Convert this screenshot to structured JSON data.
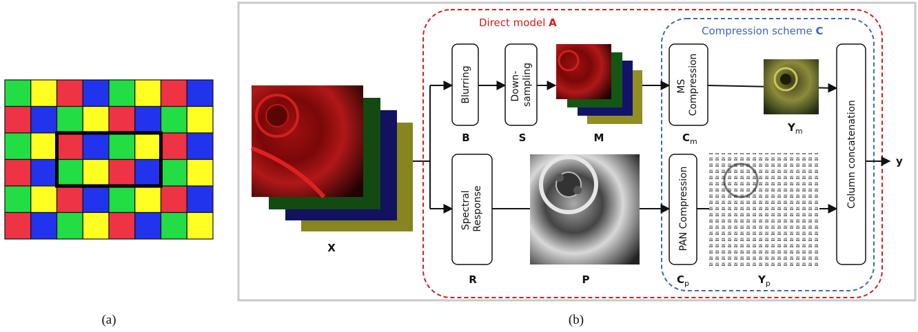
{
  "panel_a": {
    "caption": "(a)",
    "grid_rows": [
      [
        "green",
        "yellow",
        "red",
        "blue",
        "green",
        "yellow",
        "red",
        "blue"
      ],
      [
        "red",
        "blue",
        "green",
        "yellow",
        "red",
        "blue",
        "green",
        "yellow"
      ],
      [
        "green",
        "yellow",
        "red",
        "blue",
        "green",
        "yellow",
        "red",
        "blue"
      ],
      [
        "red",
        "blue",
        "green",
        "yellow",
        "red",
        "blue",
        "green",
        "yellow"
      ],
      [
        "green",
        "yellow",
        "red",
        "blue",
        "green",
        "yellow",
        "red",
        "blue"
      ],
      [
        "red",
        "blue",
        "green",
        "yellow",
        "red",
        "blue",
        "green",
        "yellow"
      ]
    ],
    "highlight": {
      "row_start": 2,
      "row_end": 3,
      "col_start": 2,
      "col_end": 5
    },
    "colors": {
      "green": "#22dd44",
      "yellow": "#ffff22",
      "red": "#ee3344",
      "blue": "#2233ee"
    }
  },
  "panel_b": {
    "caption": "(b)",
    "direct_model": {
      "label_prefix": "Direct model ",
      "label_bold": "A",
      "color": "#e01818"
    },
    "compression_scheme": {
      "label_prefix": "Compression scheme ",
      "label_bold": "C",
      "color": "#3a66c4"
    },
    "blocks": {
      "blurring": "Blurring",
      "downsampling": [
        "Down-",
        "sampling"
      ],
      "spectral_response": [
        "Spectral",
        "Response"
      ],
      "ms_compression": [
        "MS",
        "Compression"
      ],
      "pan_compression": "PAN Compression",
      "column_concat": "Column concatenation"
    },
    "symbols": {
      "x": "X",
      "b": "B",
      "s": "S",
      "m": "M",
      "r": "R",
      "p": "P",
      "cm": "C",
      "cm_sub": "m",
      "cp": "C",
      "cp_sub": "p",
      "ym": "Y",
      "ym_sub": "m",
      "yp": "Y",
      "yp_sub": "p",
      "y": "y"
    }
  }
}
